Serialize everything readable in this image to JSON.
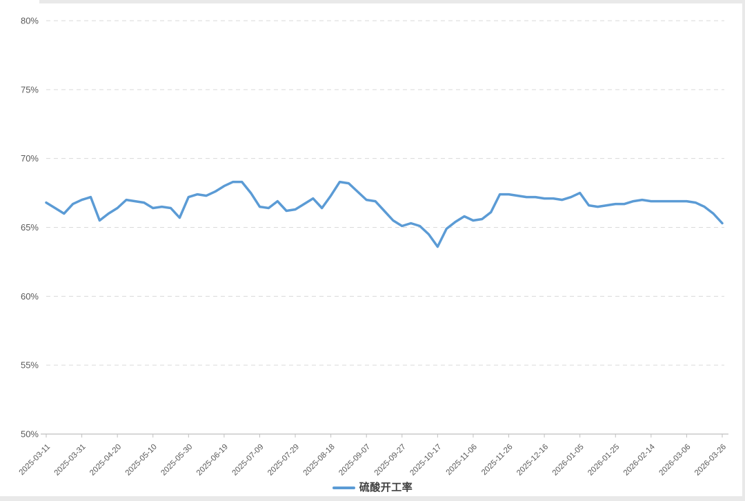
{
  "page": {
    "background": "#ffffff",
    "frame_color": "#e9e9e9"
  },
  "chart_data": {
    "type": "line",
    "title": "",
    "xlabel": "",
    "ylabel": "",
    "ylim": [
      50,
      80
    ],
    "grid": "horizontal dashed",
    "legend_position": "bottom-center",
    "grid_color": "#d9d9d9",
    "axis_color": "#bfbfbf",
    "label_color": "#595959",
    "y_ticks": [
      {
        "label": "80%",
        "value": 80
      },
      {
        "label": "75%",
        "value": 75
      },
      {
        "label": "70%",
        "value": 70
      },
      {
        "label": "65%",
        "value": 65
      },
      {
        "label": "60%",
        "value": 60
      },
      {
        "label": "55%",
        "value": 55
      },
      {
        "label": "50%",
        "value": 50
      }
    ],
    "x_tick_labels": [
      "2025-03-11",
      "2025-03-31",
      "2025-04-20",
      "2025-05-10",
      "2025-05-30",
      "2025-06-19",
      "2025-07-09",
      "2025-07-29",
      "2025-08-18",
      "2025-09-07",
      "2025-09-27",
      "2025-10-17",
      "2025-11-06",
      "2025-11-26",
      "2025-12-16",
      "2026-01-05",
      "2026-01-25",
      "2026-02-14",
      "2026-03-06",
      "2026-03-26"
    ],
    "x": [
      "2025-03-11",
      "2025-03-16",
      "2025-03-21",
      "2025-03-26",
      "2025-03-31",
      "2025-04-05",
      "2025-04-10",
      "2025-04-15",
      "2025-04-20",
      "2025-04-25",
      "2025-04-30",
      "2025-05-05",
      "2025-05-10",
      "2025-05-15",
      "2025-05-20",
      "2025-05-25",
      "2025-05-30",
      "2025-06-04",
      "2025-06-09",
      "2025-06-14",
      "2025-06-19",
      "2025-06-24",
      "2025-06-29",
      "2025-07-04",
      "2025-07-09",
      "2025-07-14",
      "2025-07-19",
      "2025-07-24",
      "2025-07-29",
      "2025-08-03",
      "2025-08-08",
      "2025-08-13",
      "2025-08-18",
      "2025-08-23",
      "2025-08-28",
      "2025-09-02",
      "2025-09-07",
      "2025-09-12",
      "2025-09-17",
      "2025-09-22",
      "2025-09-27",
      "2025-10-02",
      "2025-10-07",
      "2025-10-12",
      "2025-10-17",
      "2025-10-22",
      "2025-10-27",
      "2025-11-01",
      "2025-11-06",
      "2025-11-11",
      "2025-11-16",
      "2025-11-21",
      "2025-11-26",
      "2025-12-01",
      "2025-12-06",
      "2025-12-11",
      "2025-12-16",
      "2025-12-21",
      "2025-12-26",
      "2025-12-31",
      "2026-01-05",
      "2026-01-10",
      "2026-01-15",
      "2026-01-20",
      "2026-01-25",
      "2026-01-30",
      "2026-02-04",
      "2026-02-09",
      "2026-02-14",
      "2026-02-19",
      "2026-02-24",
      "2026-03-01",
      "2026-03-06",
      "2026-03-11",
      "2026-03-16",
      "2026-03-21",
      "2026-03-26"
    ],
    "series": [
      {
        "name": "硫酸开工率",
        "color": "#5b9bd5",
        "values": [
          66.8,
          66.4,
          66.0,
          66.7,
          67.0,
          67.2,
          65.5,
          66.0,
          66.4,
          67.0,
          66.9,
          66.8,
          66.4,
          66.5,
          66.4,
          65.7,
          67.2,
          67.4,
          67.3,
          67.6,
          68.0,
          68.3,
          68.3,
          67.5,
          66.5,
          66.4,
          66.9,
          66.2,
          66.3,
          66.7,
          67.1,
          66.4,
          67.3,
          68.3,
          68.2,
          67.6,
          67.0,
          66.9,
          66.2,
          65.5,
          65.1,
          65.3,
          65.1,
          64.5,
          63.6,
          64.9,
          65.4,
          65.8,
          65.5,
          65.6,
          66.1,
          67.4,
          67.4,
          67.3,
          67.2,
          67.2,
          67.1,
          67.1,
          67.0,
          67.2,
          67.5,
          66.6,
          66.5,
          66.6,
          66.7,
          66.7,
          66.9,
          67.0,
          66.9,
          66.9,
          66.9,
          66.9,
          66.9,
          66.8,
          66.5,
          66.0,
          65.3
        ]
      }
    ]
  },
  "legend": {
    "items": [
      {
        "label": "硫酸开工率",
        "color": "#5b9bd5"
      }
    ]
  }
}
